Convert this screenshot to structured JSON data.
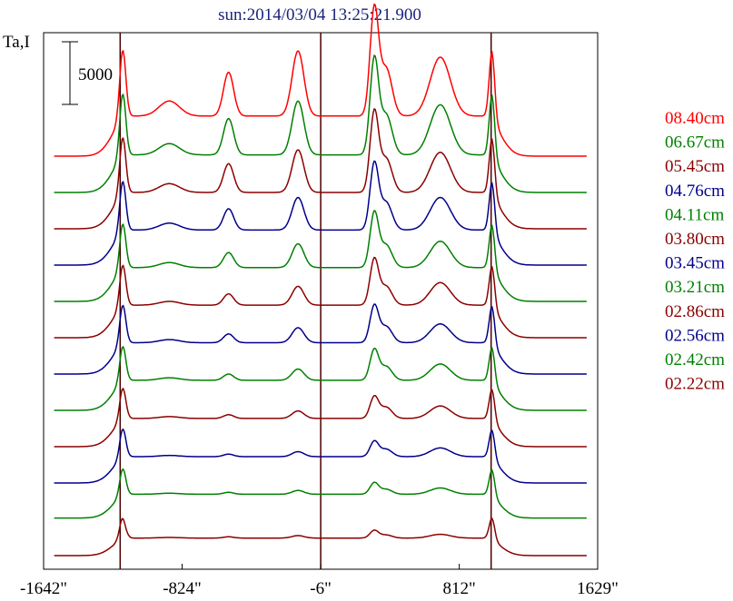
{
  "chart_data": {
    "type": "line",
    "title": "sun:2014/03/04 13:25:21.900",
    "ylabel": "Ta,I",
    "scale_bar_label": "5000",
    "x_tick_labels": [
      "-1642\"",
      "-824\"",
      "-6\"",
      "812\"",
      "1629\""
    ],
    "x_ticks": [
      -1642,
      -824,
      -6,
      812,
      1629
    ],
    "xlim": [
      -1642,
      1629
    ],
    "vertical_markers": [
      -1190,
      -6,
      1000
    ],
    "grid": false,
    "legend_position": "right",
    "series": [
      {
        "name": "02.22cm",
        "color": "#8B0000",
        "offset": 0,
        "bg": 0,
        "disk": 1400,
        "edge": 1700,
        "dip": -200,
        "pB": 50,
        "pC": 100,
        "pD": 200,
        "pE": 600,
        "pF": 250,
        "pG": 300
      },
      {
        "name": "02.42cm",
        "color": "#008000",
        "offset": 1,
        "bg": 100,
        "disk": 1900,
        "edge": 2100,
        "dip": 0,
        "pB": 80,
        "pC": 150,
        "pD": 300,
        "pE": 900,
        "pF": 400,
        "pG": 500
      },
      {
        "name": "02.56cm",
        "color": "#00008B",
        "offset": 2,
        "bg": 0,
        "disk": 2100,
        "edge": 2300,
        "dip": 0,
        "pB": 100,
        "pC": 200,
        "pD": 400,
        "pE": 1200,
        "pF": 600,
        "pG": 700
      },
      {
        "name": "02.86cm",
        "color": "#8B0000",
        "offset": 3,
        "bg": 0,
        "disk": 2250,
        "edge": 2500,
        "dip": 0,
        "pB": 150,
        "pC": 300,
        "pD": 600,
        "pE": 1700,
        "pF": 900,
        "pG": 1000
      },
      {
        "name": "03.21cm",
        "color": "#008000",
        "offset": 4,
        "bg": 0,
        "disk": 2400,
        "edge": 2800,
        "dip": 0,
        "pB": 200,
        "pC": 500,
        "pD": 900,
        "pE": 2400,
        "pF": 1100,
        "pG": 1300
      },
      {
        "name": "03.45cm",
        "color": "#00008B",
        "offset": 5,
        "bg": 0,
        "disk": 2500,
        "edge": 3100,
        "dip": 0,
        "pB": 250,
        "pC": 700,
        "pD": 1200,
        "pE": 2900,
        "pF": 1300,
        "pG": 1500
      },
      {
        "name": "03.80cm",
        "color": "#8B0000",
        "offset": 6,
        "bg": 0,
        "disk": 2600,
        "edge": 3300,
        "dip": 0,
        "pB": 300,
        "pC": 900,
        "pD": 1500,
        "pE": 3600,
        "pF": 1500,
        "pG": 1800
      },
      {
        "name": "04.11cm",
        "color": "#008000",
        "offset": 7,
        "bg": 0,
        "disk": 2700,
        "edge": 3600,
        "dip": 0,
        "pB": 400,
        "pC": 1200,
        "pD": 1900,
        "pE": 4300,
        "pF": 1800,
        "pG": 2100
      },
      {
        "name": "04.76cm",
        "color": "#00008B",
        "offset": 8,
        "bg": 0,
        "disk": 2800,
        "edge": 4000,
        "dip": 0,
        "pB": 550,
        "pC": 1700,
        "pD": 2600,
        "pE": 5200,
        "pF": 2200,
        "pG": 2600
      },
      {
        "name": "05.45cm",
        "color": "#8B0000",
        "offset": 9,
        "bg": 0,
        "disk": 2900,
        "edge": 4500,
        "dip": 0,
        "pB": 700,
        "pC": 2300,
        "pD": 3400,
        "pE": 6300,
        "pF": 2700,
        "pG": 3200
      },
      {
        "name": "06.67cm",
        "color": "#008000",
        "offset": 10,
        "bg": 0,
        "disk": 3000,
        "edge": 5000,
        "dip": 0,
        "pB": 900,
        "pC": 2900,
        "pD": 4300,
        "pE": 7500,
        "pF": 3200,
        "pG": 4000
      },
      {
        "name": "08.40cm",
        "color": "#FF0000",
        "offset": 11,
        "bg": 0,
        "disk": 3200,
        "edge": 5400,
        "dip": 0,
        "pB": 1200,
        "pC": 3500,
        "pD": 5200,
        "pE": 8400,
        "pF": 3800,
        "pG": 4700
      }
    ]
  }
}
